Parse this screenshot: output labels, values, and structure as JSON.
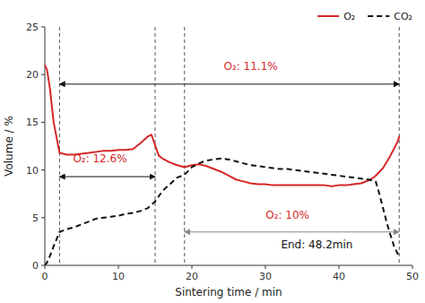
{
  "chart_data": {
    "type": "line",
    "xlabel": "Sintering time / min",
    "ylabel": "Volume / %",
    "xlim": [
      0,
      50
    ],
    "ylim": [
      0,
      25
    ],
    "xticks": [
      0,
      10,
      20,
      30,
      40,
      50
    ],
    "yticks": [
      0,
      5,
      10,
      15,
      20,
      25
    ],
    "grid": false,
    "legend": "upper right",
    "series": [
      {
        "name": "O₂",
        "color": "#d62728",
        "line_style": "solid",
        "x": [
          0,
          0.3,
          0.7,
          1.2,
          2.0,
          3,
          4,
          5,
          6,
          7,
          8,
          9,
          10,
          11,
          12,
          13,
          14,
          14.5,
          15.5,
          16,
          17,
          18,
          19,
          20,
          21,
          22,
          23,
          24,
          25,
          26,
          27,
          28,
          29,
          30,
          31,
          32,
          33,
          34,
          35,
          36,
          37,
          38,
          39,
          40,
          41,
          42,
          43,
          44,
          44.5,
          45,
          46,
          47,
          48,
          48.2
        ],
        "values": [
          21.0,
          20.5,
          18.5,
          15.0,
          11.8,
          11.6,
          11.6,
          11.7,
          11.8,
          11.9,
          12.0,
          12.0,
          12.1,
          12.1,
          12.2,
          12.8,
          13.5,
          13.7,
          11.5,
          11.2,
          10.8,
          10.5,
          10.3,
          10.5,
          10.6,
          10.4,
          10.1,
          9.8,
          9.4,
          9.0,
          8.8,
          8.6,
          8.5,
          8.5,
          8.4,
          8.4,
          8.4,
          8.4,
          8.4,
          8.4,
          8.4,
          8.4,
          8.3,
          8.4,
          8.4,
          8.5,
          8.6,
          8.9,
          9.1,
          9.4,
          10.2,
          11.5,
          13.0,
          13.5
        ]
      },
      {
        "name": "CO₂",
        "color": "#111111",
        "line_style": "dashed",
        "x": [
          0,
          0.3,
          0.7,
          1.2,
          2.0,
          3,
          4,
          5,
          6,
          7,
          8,
          9,
          10,
          11,
          12,
          13,
          14,
          15,
          16,
          17,
          18,
          19,
          20,
          21,
          22,
          23,
          24,
          25,
          26,
          27,
          28,
          29,
          30,
          31,
          32,
          33,
          34,
          35,
          36,
          37,
          38,
          39,
          40,
          41,
          42,
          43,
          44,
          44.5,
          45,
          45.5,
          46,
          46.5,
          47,
          47.5,
          48,
          48.2
        ],
        "values": [
          0,
          0.3,
          1.0,
          2.0,
          3.5,
          3.8,
          4.0,
          4.3,
          4.6,
          4.9,
          5.0,
          5.1,
          5.2,
          5.4,
          5.5,
          5.7,
          6.0,
          6.7,
          7.8,
          8.5,
          9.2,
          9.5,
          10.3,
          10.7,
          11.0,
          11.1,
          11.2,
          11.1,
          10.9,
          10.7,
          10.5,
          10.4,
          10.3,
          10.2,
          10.1,
          10.1,
          10.0,
          9.9,
          9.8,
          9.7,
          9.6,
          9.5,
          9.4,
          9.3,
          9.2,
          9.1,
          9.0,
          8.9,
          8.8,
          7.5,
          6.0,
          4.5,
          3.2,
          2.0,
          1.2,
          1.0
        ]
      }
    ],
    "vlines": [
      2,
      15,
      19,
      48.2
    ],
    "vline_color": "#555555",
    "arrows": [
      {
        "x1": 2,
        "x2": 48.2,
        "y": 19.0,
        "color": "#111111"
      },
      {
        "x1": 2,
        "x2": 15,
        "y": 9.3,
        "color": "#111111"
      },
      {
        "x1": 19,
        "x2": 48.2,
        "y": 3.5,
        "color": "#888888"
      }
    ],
    "annotations": [
      {
        "text": "O₂: 11.1%",
        "x": 28,
        "y": 20.2,
        "color": "#d62728"
      },
      {
        "text": "O₂: 12.6%",
        "x": 7.5,
        "y": 10.5,
        "color": "#d62728"
      },
      {
        "text": "O₂: 10%",
        "x": 33,
        "y": 4.6,
        "color": "#d62728"
      },
      {
        "text": "End: 48.2min",
        "x": 37,
        "y": 1.5,
        "color": "#111111"
      }
    ]
  }
}
